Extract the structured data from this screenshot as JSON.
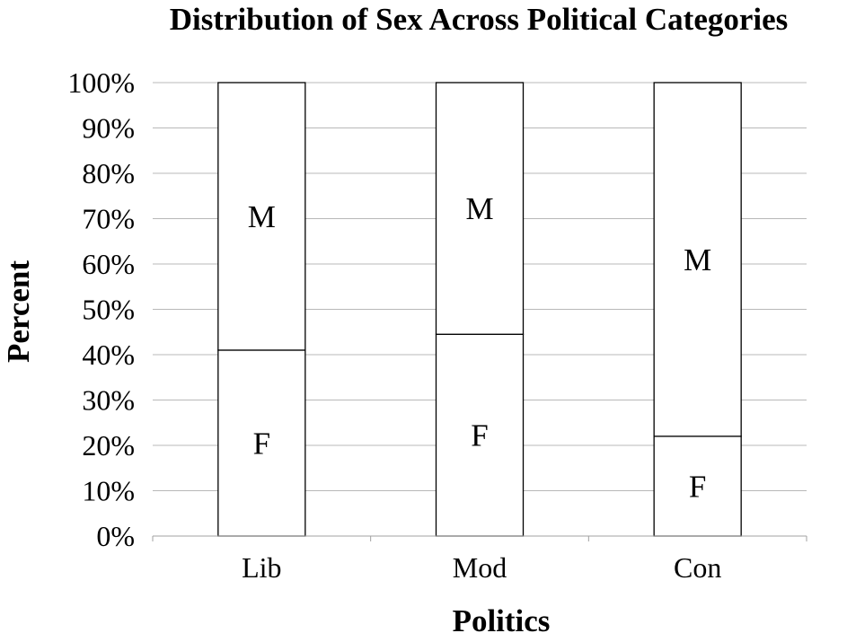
{
  "chart_data": {
    "type": "bar",
    "stacked": true,
    "title": "Distribution of Sex Across Political Categories",
    "xlabel": "Politics",
    "ylabel": "Percent",
    "ylim": [
      0,
      100
    ],
    "yticks": [
      "0%",
      "10%",
      "20%",
      "30%",
      "40%",
      "50%",
      "60%",
      "70%",
      "80%",
      "90%",
      "100%"
    ],
    "categories": [
      "Lib",
      "Mod",
      "Con"
    ],
    "series": [
      {
        "name": "F",
        "values": [
          41,
          44.5,
          22
        ]
      },
      {
        "name": "M",
        "values": [
          59,
          55.5,
          78
        ]
      }
    ],
    "grid": true,
    "legend": "none",
    "colors": {
      "bar_fill": "#ffffff",
      "bar_stroke": "#000000",
      "grid": "#b8b8b8",
      "text": "#000000"
    }
  }
}
